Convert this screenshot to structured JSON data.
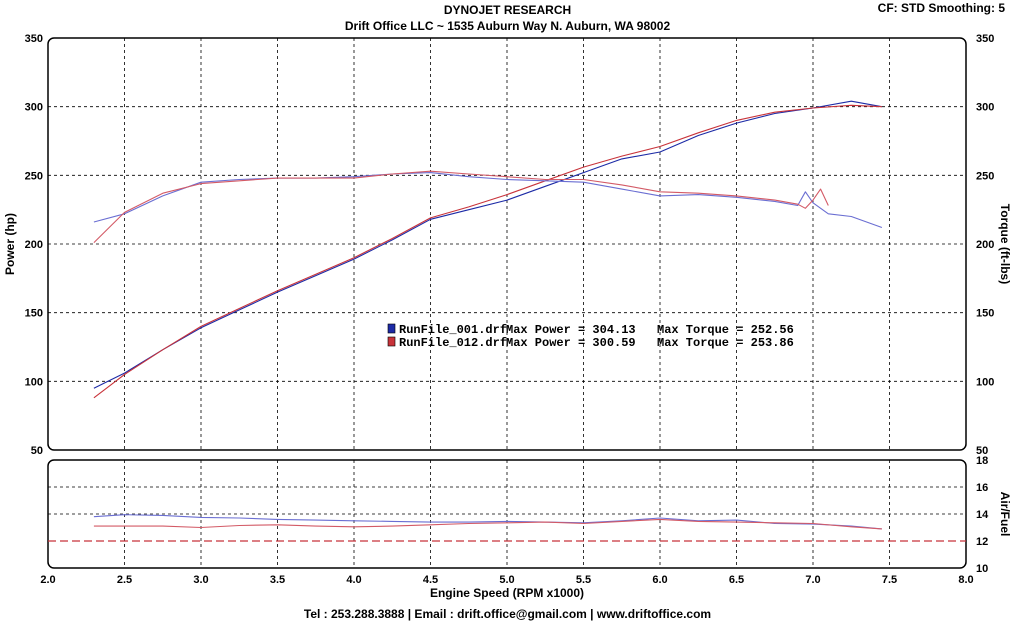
{
  "header": {
    "title": "DYNOJET RESEARCH",
    "subtitle": "Drift Office LLC ~ 1535 Auburn Way N. Auburn, WA 98002",
    "cf_smoothing": "CF: STD  Smoothing: 5"
  },
  "footer": "Tel : 253.288.3888 | Email : drift.office@gmail.com | www.driftoffice.com",
  "colors": {
    "run1": "#1c2aa6",
    "run2": "#c8333a",
    "run1_light": "#6a6ed2",
    "run2_light": "#d35a66",
    "grid": "#000000"
  },
  "chart_data": [
    {
      "type": "line",
      "xlabel": "Engine Speed (RPM x1000)",
      "ylabel": "Power (hp)",
      "y2label": "Torque (ft-lbs)",
      "xlim": [
        2.0,
        8.0
      ],
      "ylim": [
        50,
        350
      ],
      "y2lim": [
        50,
        350
      ],
      "x_ticks": [
        "2.0",
        "2.5",
        "3.0",
        "3.5",
        "4.0",
        "4.5",
        "5.0",
        "5.5",
        "6.0",
        "6.5",
        "7.0",
        "7.5",
        "8.0"
      ],
      "y_ticks": [
        "50",
        "100",
        "150",
        "200",
        "250",
        "300",
        "350"
      ],
      "y2_ticks": [
        "50",
        "100",
        "150",
        "200",
        "250",
        "300",
        "350"
      ],
      "grid": true,
      "legend": [
        {
          "file": "RunFile_001.drf",
          "power_text": "Max Power = 304.13",
          "torque_text": "Max Torque = 252.56"
        },
        {
          "file": "RunFile_012.drf",
          "power_text": "Max Power = 300.59",
          "torque_text": "Max Torque = 253.86"
        }
      ],
      "series": [
        {
          "name": "RunFile_001.drf",
          "measure": "power",
          "x": [
            2.3,
            2.5,
            2.75,
            3.0,
            3.25,
            3.5,
            3.75,
            4.0,
            4.25,
            4.5,
            4.75,
            5.0,
            5.25,
            5.5,
            5.75,
            6.0,
            6.25,
            6.5,
            6.75,
            7.0,
            7.25,
            7.45
          ],
          "y": [
            95,
            106,
            123,
            139,
            152,
            165,
            177,
            189,
            203,
            218,
            225,
            232,
            242,
            252,
            262,
            267,
            279,
            288,
            295,
            299,
            304,
            300
          ]
        },
        {
          "name": "RunFile_012.drf",
          "measure": "power",
          "x": [
            2.3,
            2.5,
            2.75,
            3.0,
            3.25,
            3.5,
            3.75,
            4.0,
            4.25,
            4.5,
            4.75,
            5.0,
            5.25,
            5.5,
            5.75,
            6.0,
            6.25,
            6.5,
            6.75,
            7.0,
            7.25,
            7.45
          ],
          "y": [
            88,
            105,
            123,
            140,
            153,
            166,
            178,
            190,
            204,
            219,
            227,
            236,
            246,
            256,
            264,
            271,
            281,
            290,
            296,
            299,
            301,
            300
          ]
        },
        {
          "name": "RunFile_001.drf",
          "measure": "torque",
          "x": [
            2.3,
            2.5,
            2.75,
            3.0,
            3.25,
            3.5,
            3.75,
            4.0,
            4.25,
            4.5,
            4.75,
            5.0,
            5.25,
            5.5,
            5.75,
            6.0,
            6.25,
            6.5,
            6.75,
            6.9,
            6.95,
            7.0,
            7.1,
            7.25,
            7.45
          ],
          "y": [
            216,
            222,
            235,
            245,
            247,
            248,
            248,
            249,
            251,
            252,
            249,
            247,
            246,
            245,
            240,
            235,
            236,
            234,
            231,
            228,
            238,
            230,
            222,
            220,
            212
          ]
        },
        {
          "name": "RunFile_012.drf",
          "measure": "torque",
          "x": [
            2.3,
            2.5,
            2.75,
            3.0,
            3.25,
            3.5,
            3.75,
            4.0,
            4.25,
            4.5,
            4.75,
            5.0,
            5.25,
            5.5,
            5.75,
            6.0,
            6.25,
            6.5,
            6.75,
            6.9,
            6.95,
            7.0,
            7.05,
            7.1
          ],
          "y": [
            201,
            223,
            237,
            244,
            246,
            248,
            248,
            248,
            251,
            253,
            251,
            249,
            247,
            247,
            243,
            238,
            237,
            235,
            232,
            229,
            226,
            232,
            240,
            228
          ]
        }
      ]
    },
    {
      "type": "line",
      "xlabel": "Engine Speed (RPM x1000)",
      "y2label": "Air/Fuel",
      "xlim": [
        2.0,
        8.0
      ],
      "y2lim": [
        10,
        18
      ],
      "y2_ticks": [
        "10",
        "12",
        "14",
        "16",
        "18"
      ],
      "grid": true,
      "reference_line": 12,
      "series": [
        {
          "name": "RunFile_001.drf",
          "x": [
            2.3,
            2.5,
            2.75,
            3.0,
            3.25,
            3.5,
            3.75,
            4.0,
            4.25,
            4.5,
            4.75,
            5.0,
            5.25,
            5.5,
            5.75,
            6.0,
            6.25,
            6.5,
            6.75,
            7.0,
            7.25,
            7.45
          ],
          "y": [
            13.8,
            13.95,
            13.9,
            13.75,
            13.7,
            13.6,
            13.55,
            13.5,
            13.45,
            13.4,
            13.4,
            13.45,
            13.4,
            13.35,
            13.5,
            13.7,
            13.5,
            13.55,
            13.3,
            13.25,
            13.1,
            12.9
          ]
        },
        {
          "name": "RunFile_012.drf",
          "x": [
            2.3,
            2.5,
            2.75,
            3.0,
            3.25,
            3.5,
            3.75,
            4.0,
            4.25,
            4.5,
            4.75,
            5.0,
            5.25,
            5.5,
            5.75,
            6.0,
            6.25,
            6.5,
            6.75,
            7.0,
            7.25,
            7.45
          ],
          "y": [
            13.1,
            13.1,
            13.1,
            13.0,
            13.15,
            13.2,
            13.1,
            13.05,
            13.1,
            13.2,
            13.3,
            13.35,
            13.4,
            13.3,
            13.45,
            13.6,
            13.45,
            13.4,
            13.35,
            13.3,
            13.05,
            12.9
          ]
        }
      ]
    }
  ]
}
